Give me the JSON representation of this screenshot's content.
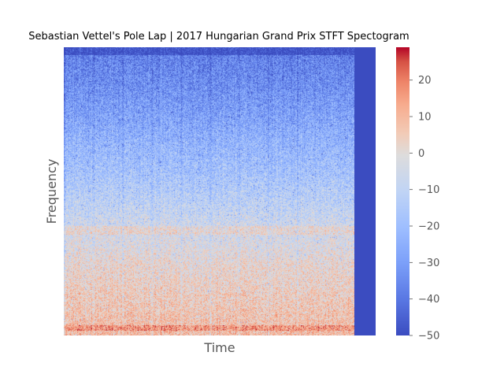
{
  "chart_data": {
    "type": "heatmap",
    "title": "Sebastian Vettel's Pole Lap | 2017 Hungarian Grand Prix STFT Spectogram",
    "xlabel": "Time",
    "ylabel": "Frequency",
    "x_ticks_shown": false,
    "y_ticks_shown": false,
    "colormap": "coolwarm",
    "colorbar": {
      "range": [
        -50,
        29
      ],
      "ticks": [
        20,
        10,
        0,
        -10,
        -20,
        -30,
        -40,
        -50
      ],
      "tick_labels": [
        "20",
        "10",
        "0",
        "−10",
        "−20",
        "−30",
        "−40",
        "−50"
      ]
    },
    "signal_extent_fraction_of_time": 0.93,
    "padding_value": -50,
    "level_profile_db_top_to_bottom": [
      -38,
      -36,
      -34,
      -31,
      -28,
      -24,
      -21,
      -18,
      -14,
      -10,
      -6,
      -3,
      1,
      3,
      5,
      7,
      9
    ]
  },
  "colors": {
    "cmap_low": "#3b4cc0",
    "cmap_mid": "#dddddd",
    "cmap_high": "#b40426"
  }
}
